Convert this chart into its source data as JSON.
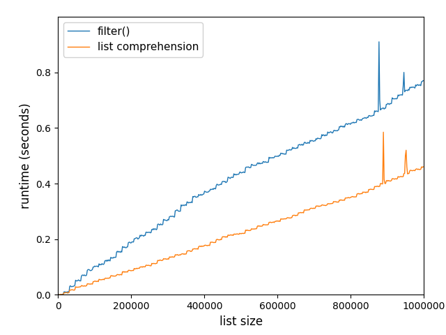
{
  "title": "",
  "xlabel": "list size",
  "ylabel": "runtime (seconds)",
  "filter_color": "#1f77b4",
  "listcomp_color": "#ff7f0e",
  "legend_labels": [
    "filter()",
    "list comprehension"
  ],
  "xlim": [
    0,
    1000000
  ],
  "ylim": [
    0,
    1.0
  ],
  "figsize": [
    6.4,
    4.8
  ],
  "dpi": 100
}
